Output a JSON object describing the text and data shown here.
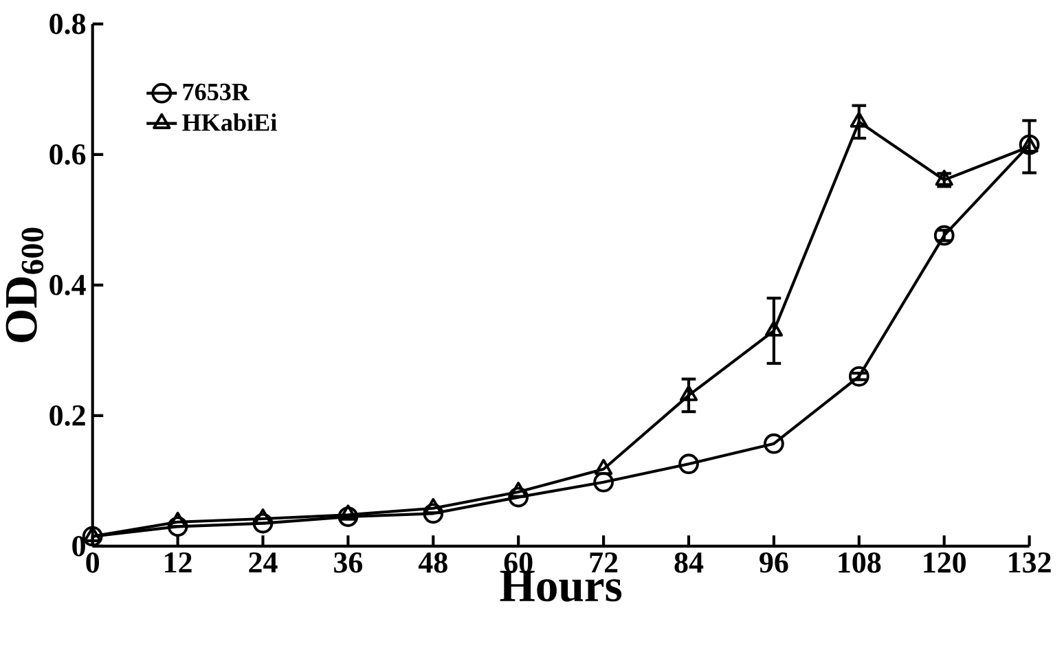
{
  "chart_data": {
    "type": "line",
    "xlabel": "Hours",
    "ylabel": "OD$_{600}$",
    "x": [
      0,
      12,
      24,
      36,
      48,
      60,
      72,
      84,
      96,
      108,
      120,
      132
    ],
    "series": [
      {
        "name": "7653R",
        "color": "#000000",
        "marker": "circle",
        "values": [
          0.015,
          0.03,
          0.035,
          0.045,
          0.05,
          0.075,
          0.098,
          0.126,
          0.157,
          0.26,
          0.476,
          0.615
        ],
        "errors": [
          null,
          null,
          null,
          null,
          null,
          null,
          null,
          null,
          null,
          0.005,
          0.008,
          null
        ]
      },
      {
        "name": "HKabiEi",
        "color": "#000000",
        "marker": "triangle",
        "values": [
          0.015,
          0.037,
          0.042,
          0.048,
          0.058,
          0.083,
          0.118,
          0.231,
          0.33,
          0.65,
          0.561,
          0.612
        ],
        "errors": [
          null,
          null,
          null,
          null,
          null,
          null,
          null,
          0.025,
          0.05,
          0.025,
          0.01,
          0.04
        ]
      }
    ],
    "xlim": [
      0,
      132
    ],
    "xticks": [
      0,
      12,
      24,
      36,
      48,
      60,
      72,
      84,
      96,
      108,
      120,
      132
    ],
    "ylim": [
      0,
      0.8
    ],
    "yticks": [
      0,
      0.2,
      0.4,
      0.6,
      0.8
    ],
    "grid": false,
    "legend": "top left",
    "line_style": "solid"
  }
}
